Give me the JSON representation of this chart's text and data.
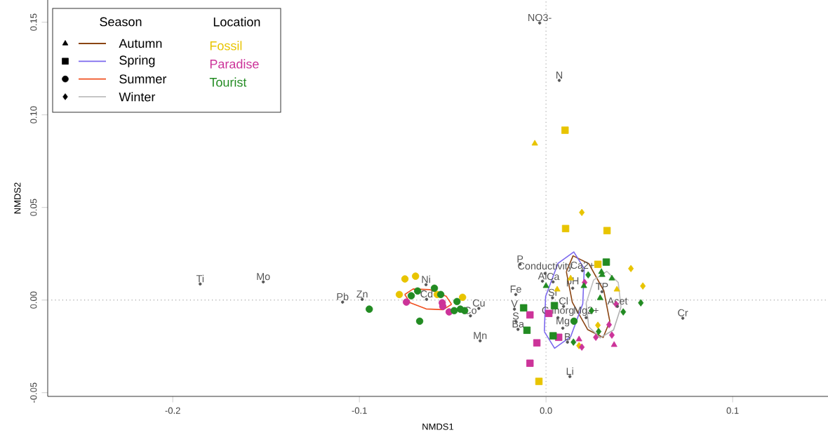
{
  "chart_data": {
    "type": "scatter",
    "xlabel": "NMDS1",
    "ylabel": "NMDS2",
    "legend_title": "Season",
    "legend": "top left",
    "xlim": [
      -0.267,
      0.1511
    ],
    "ylim": [
      -0.052,
      0.162
    ],
    "xticks": [
      {
        "value": -0.2,
        "label": "-0.2"
      },
      {
        "value": -0.1,
        "label": "-0.1"
      },
      {
        "value": 0,
        "label": "0.0"
      },
      {
        "value": 0.1,
        "label": "0.1"
      }
    ],
    "yticks": [
      {
        "value": -0.05,
        "label": "-0.05"
      },
      {
        "value": 0,
        "label": "0.00"
      },
      {
        "value": 0.05,
        "label": "0.05"
      },
      {
        "value": 0.1,
        "label": "0.10"
      },
      {
        "value": 0.15,
        "label": "0.15"
      }
    ],
    "ref_lines": [
      {
        "axis": "x",
        "value": 0,
        "color": "#aaaaaa",
        "line_style": "dotted"
      },
      {
        "axis": "y",
        "value": 0,
        "color": "#a4a4a4",
        "line_style": "dotted"
      }
    ],
    "series": [
      {
        "name": "Fossil",
        "type": "scatter",
        "marker": "triangle",
        "color": "#e8c400",
        "x": [
          -0.006,
          0.0132,
          0.006,
          0.038
        ],
        "values": [
          0.0845,
          0.0117,
          0.0057,
          0.0057
        ]
      },
      {
        "type": "scatter",
        "marker": "square",
        "color": "#e8c400",
        "x": [
          0.0102,
          0.0105,
          0.0327,
          0.0278,
          -0.0038
        ],
        "values": [
          0.0917,
          0.0386,
          0.0375,
          0.0193,
          -0.0439
        ]
      },
      {
        "type": "scatter",
        "marker": "circle",
        "color": "#e8c400",
        "x": [
          -0.0756,
          -0.0699,
          -0.0786,
          -0.0447,
          -0.0583
        ],
        "values": [
          0.0114,
          0.0129,
          0.003,
          0.0015,
          0.003
        ]
      },
      {
        "type": "scatter",
        "marker": "diamond",
        "color": "#e8c400",
        "x": [
          0.0192,
          0.0455,
          0.0519,
          0.0278,
          0.0177
        ],
        "values": [
          0.0473,
          0.017,
          0.0076,
          -0.0136,
          -0.0246
        ]
      },
      {
        "name": "Paradise",
        "type": "scatter",
        "marker": "triangle",
        "color": "#cc3399",
        "x": [
          0.0365,
          0.0177
        ],
        "values": [
          -0.0242,
          -0.0212
        ]
      },
      {
        "type": "scatter",
        "marker": "square",
        "color": "#cc3399",
        "x": [
          -0.0086,
          -0.0049,
          0.0068,
          0.0015,
          -0.0086
        ],
        "values": [
          -0.0341,
          -0.0231,
          -0.0201,
          -0.0072,
          -0.008
        ]
      },
      {
        "type": "scatter",
        "marker": "circle",
        "color": "#cc3399",
        "x": [
          -0.0748,
          -0.0556,
          -0.0553,
          -0.0519
        ],
        "values": [
          -0.0011,
          -0.0015,
          -0.0034,
          -0.0064
        ]
      },
      {
        "type": "scatter",
        "marker": "diamond",
        "color": "#cc3399",
        "x": [
          0.0192,
          0.0267,
          0.0207,
          0.0353,
          0.0376,
          0.0338
        ],
        "values": [
          -0.0254,
          -0.0201,
          0.0095,
          -0.0189,
          -0.0023,
          -0.0133
        ]
      },
      {
        "name": "Tourist",
        "type": "scatter",
        "marker": "triangle",
        "color": "#228b22",
        "x": [
          0.0297,
          0.0353,
          0.0203,
          0.0,
          0.0301,
          0.029
        ],
        "values": [
          0.0152,
          0.0117,
          0.0076,
          0.0076,
          0.0136,
          0.0011
        ]
      },
      {
        "type": "scatter",
        "marker": "square",
        "color": "#228b22",
        "x": [
          0.0323,
          -0.012,
          -0.0102,
          0.0038,
          0.0045
        ],
        "values": [
          0.0205,
          -0.0042,
          -0.0163,
          -0.0193,
          -0.003
        ]
      },
      {
        "type": "scatter",
        "marker": "circle",
        "color": "#228b22",
        "x": [
          -0.0947,
          -0.0688,
          -0.0722,
          -0.0598,
          -0.0564,
          -0.0477,
          -0.0492,
          -0.0459,
          -0.0436,
          -0.0677,
          0.015
        ],
        "values": [
          -0.0049,
          0.0049,
          0.0023,
          0.0064,
          0.003,
          -0.0008,
          -0.0057,
          -0.0049,
          -0.0057,
          -0.0114,
          -0.0114
        ]
      },
      {
        "type": "scatter",
        "marker": "diamond",
        "color": "#228b22",
        "x": [
          0.0508,
          0.0414,
          0.0226,
          0.0244,
          0.0282,
          0.0147
        ],
        "values": [
          -0.0015,
          -0.0064,
          0.0136,
          -0.0057,
          -0.017,
          -0.0227
        ]
      },
      {
        "name": "Autumn",
        "type": "line",
        "color": "#8b4513",
        "x": [
          0.0109,
          0.0145,
          0.0229,
          0.031,
          0.0342
        ],
        "values": [
          0.0153,
          0.0239,
          0.0197,
          0.005,
          -0.0115
        ]
      },
      {
        "type": "line",
        "color": "#8b4513",
        "x": [
          0.0109,
          0.0141,
          0.0223,
          0.0306,
          0.0342
        ],
        "values": [
          0.0153,
          -0.0012,
          -0.0159,
          -0.0202,
          -0.0115
        ]
      },
      {
        "name": "Spring",
        "type": "line",
        "color": "#7b68ee",
        "x": [
          -0.0009,
          -0.0002,
          0.0064,
          0.0149,
          0.0205
        ],
        "values": [
          -0.017,
          0.002,
          0.0198,
          0.026,
          0.017
        ]
      },
      {
        "type": "line",
        "color": "#7b68ee",
        "x": [
          -0.0009,
          0.0046,
          0.0132,
          0.0197,
          0.0205
        ],
        "values": [
          -0.017,
          -0.026,
          -0.0198,
          -0.002,
          0.017
        ]
      },
      {
        "name": "Summer",
        "type": "line",
        "color": "#f05020",
        "x": [
          -0.0757,
          -0.0712,
          -0.0621,
          -0.0535,
          -0.0506
        ],
        "values": [
          0.003,
          0.006,
          0.0056,
          0.0021,
          -0.0023
        ]
      },
      {
        "type": "line",
        "color": "#f05020",
        "x": [
          -0.0757,
          -0.0728,
          -0.0642,
          -0.0551,
          -0.0506
        ],
        "values": [
          0.003,
          -0.0014,
          -0.0048,
          -0.0052,
          -0.0023
        ]
      },
      {
        "name": "Winter",
        "type": "line",
        "color": "#bebebe",
        "x": [
          0.0215,
          0.0255,
          0.0326,
          0.0387,
          0.0402
        ],
        "values": [
          -0.0017,
          0.0108,
          0.0155,
          0.0095,
          -0.0036
        ]
      },
      {
        "type": "line",
        "color": "#b0b0b0",
        "x": [
          0.0215,
          0.0229,
          0.029,
          0.0362,
          0.0402
        ],
        "values": [
          -0.0017,
          -0.0144,
          -0.0204,
          -0.0161,
          -0.0036
        ]
      },
      {
        "type": "scatter",
        "marker": "circle",
        "color": "#555555",
        "x": [
          -0.1853,
          -0.1515,
          -0.109,
          -0.0985,
          -0.0643,
          -0.064,
          -0.0405,
          -0.036,
          -0.0353,
          -0.0034,
          0.0071,
          -0.0139,
          -0.0005,
          0.0195,
          -0.0019,
          0.0038,
          -0.0162,
          -0.0169,
          0.0035,
          0.0143,
          0.03,
          0.0094,
          0.0064,
          0.0215,
          -0.0162,
          -0.015,
          0.009,
          0.0115,
          0.0128,
          0.0733,
          0.0383
        ],
        "values": [
          0.0087,
          0.0098,
          -0.0011,
          0.0004,
          0.0083,
          0.0004,
          -0.0085,
          -0.0045,
          -0.022,
          0.1496,
          0.1186,
          0.0193,
          0.0144,
          0.0159,
          0.0102,
          0.0098,
          0.003,
          -0.0049,
          0.0012,
          0.0064,
          0.0045,
          -0.0034,
          -0.0095,
          -0.0095,
          -0.0115,
          -0.0158,
          -0.0152,
          -0.0227,
          -0.0413,
          -0.0098,
          -0.0034
        ],
        "value_labels": [
          "Ti",
          "Mo",
          "Pb",
          "Zn",
          "Ni",
          "Cd",
          "Co",
          "Cu",
          "Mn",
          "NO3-",
          "N",
          "P",
          "Conductivity",
          "Ca2+",
          "Al",
          "Ca",
          "Fe",
          "V",
          "Si",
          "pH",
          "TP",
          "Cl",
          "C inorg",
          "Mg2+",
          "S",
          "Ba",
          "Mg",
          "B",
          "Li",
          "Cr",
          "Acet"
        ]
      }
    ],
    "annotations": [
      "Location"
    ]
  }
}
